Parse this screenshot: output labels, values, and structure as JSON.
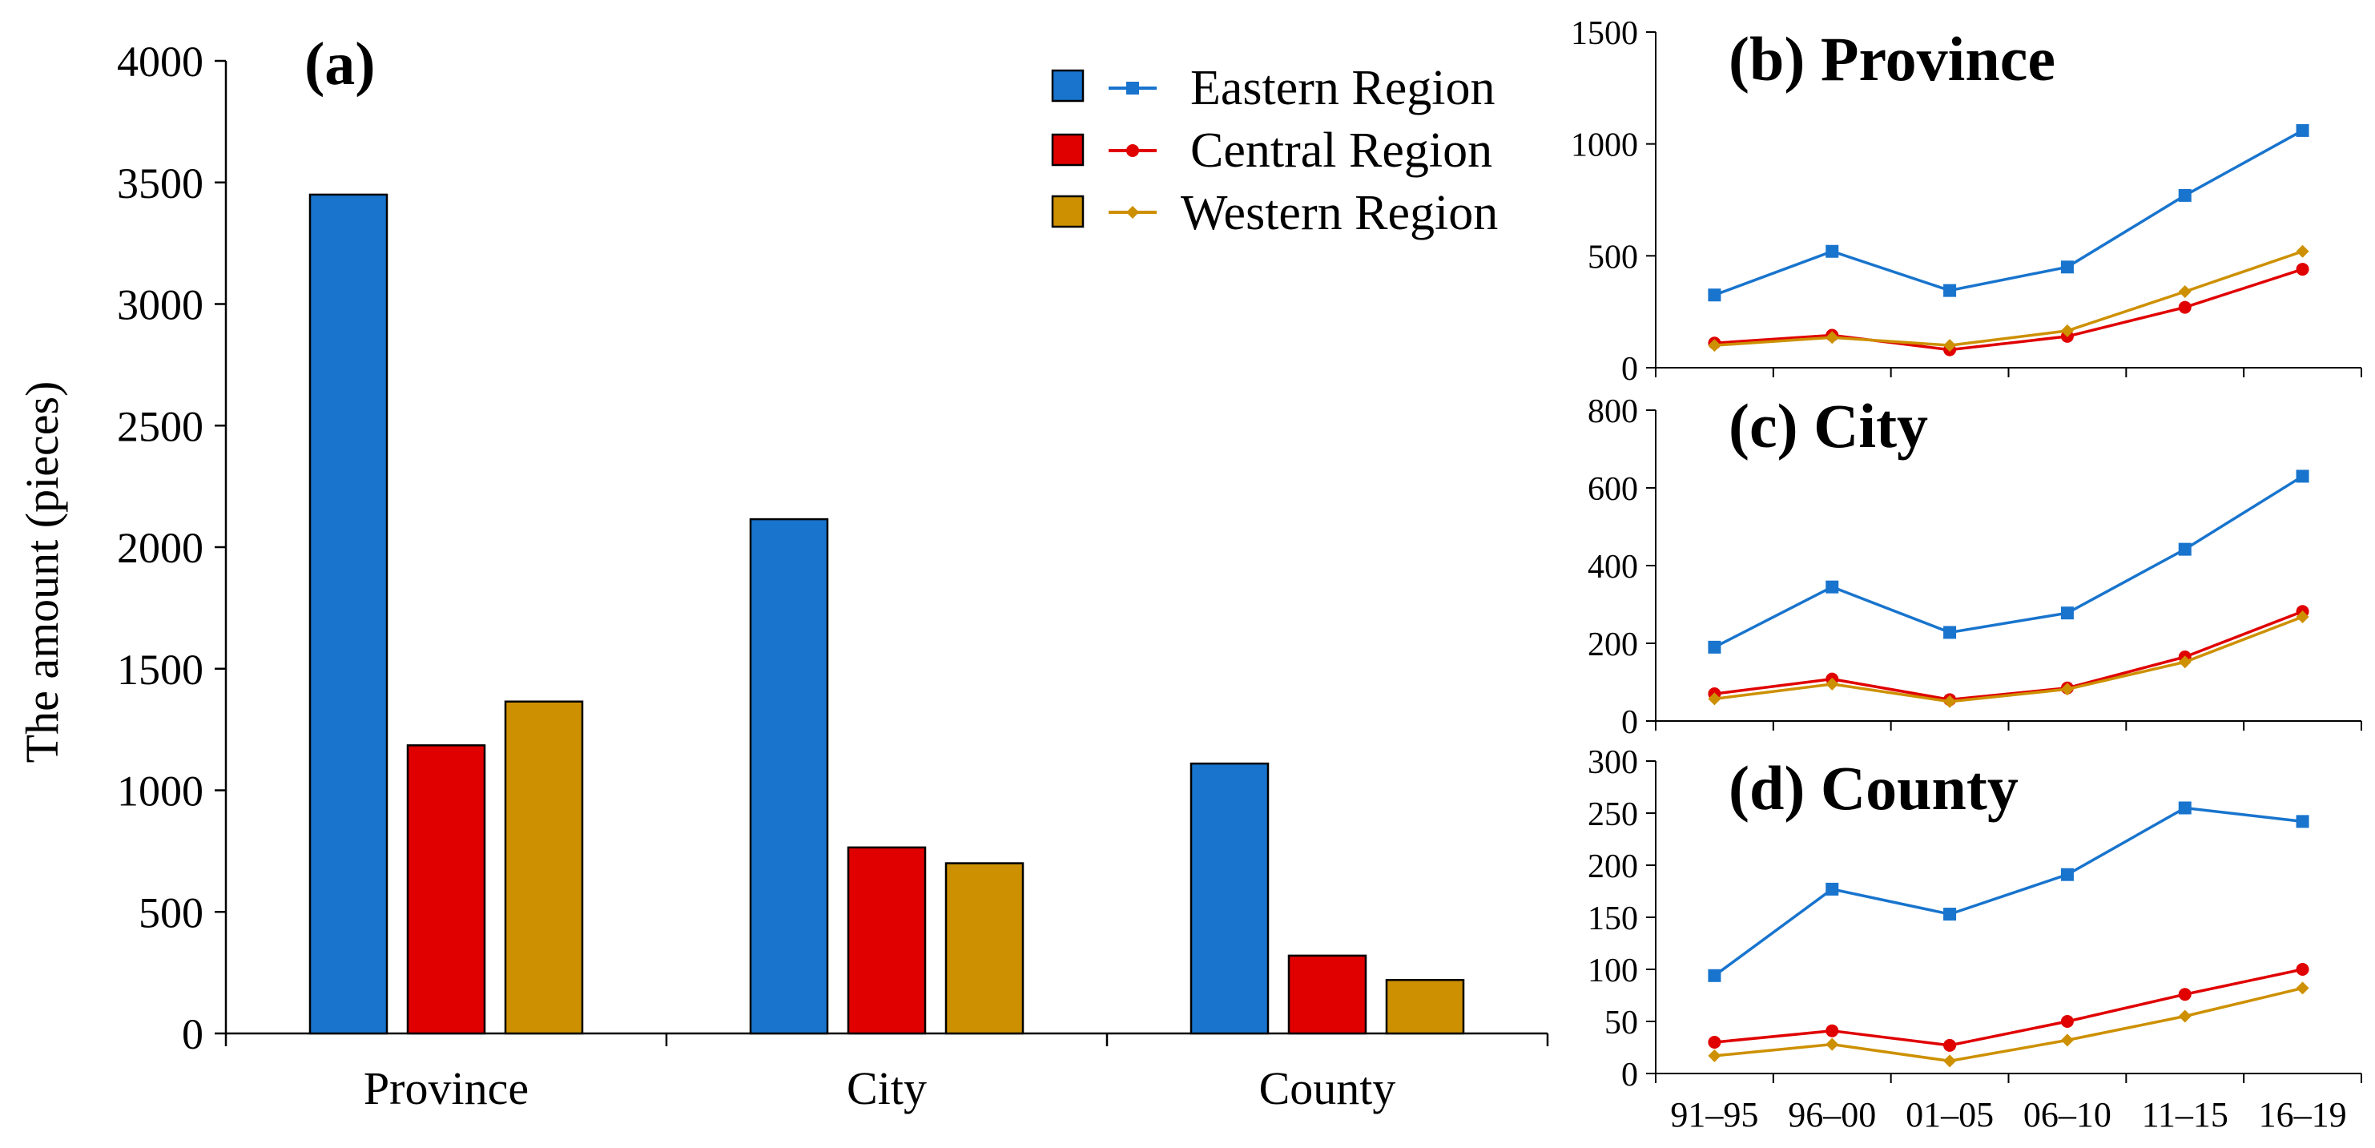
{
  "chart_data": [
    {
      "type": "bar",
      "panel_label": "(a)",
      "ylabel": "The amount (pieces)",
      "xlabel": "",
      "ylim": [
        0,
        4000
      ],
      "yticks": [
        0,
        500,
        1000,
        1500,
        2000,
        2500,
        3000,
        3500,
        4000
      ],
      "categories": [
        "Province",
        "City",
        "County"
      ],
      "series": [
        {
          "name": "Eastern Region",
          "color": "#1874CD",
          "values": [
            3450,
            2115,
            1110
          ]
        },
        {
          "name": "Central Region",
          "color": "#E00000",
          "values": [
            1185,
            765,
            320
          ]
        },
        {
          "name": "Western Region",
          "color": "#CD9000",
          "values": [
            1365,
            700,
            220
          ]
        }
      ],
      "legend": {
        "position": "top-right",
        "entries": [
          "Eastern Region",
          "Central Region",
          "Western Region"
        ]
      },
      "grid": false
    },
    {
      "type": "line",
      "panel_label": "(b) Province",
      "ylim": [
        0,
        1500
      ],
      "yticks": [
        0,
        500,
        1000,
        1500
      ],
      "x": [
        "91–95",
        "96–00",
        "01–05",
        "06–10",
        "11–15",
        "16–19"
      ],
      "series": [
        {
          "name": "Eastern Region",
          "color": "#1874CD",
          "marker": "square",
          "values": [
            325,
            520,
            345,
            450,
            770,
            1060
          ]
        },
        {
          "name": "Central Region",
          "color": "#E00000",
          "marker": "circle",
          "values": [
            110,
            145,
            80,
            140,
            270,
            440
          ]
        },
        {
          "name": "Western Region",
          "color": "#CD9000",
          "marker": "diamond",
          "values": [
            100,
            135,
            100,
            165,
            340,
            520
          ]
        }
      ]
    },
    {
      "type": "line",
      "panel_label": "(c) City",
      "ylim": [
        0,
        800
      ],
      "yticks": [
        0,
        200,
        400,
        600,
        800
      ],
      "x": [
        "91–95",
        "96–00",
        "01–05",
        "06–10",
        "11–15",
        "16–19"
      ],
      "series": [
        {
          "name": "Eastern Region",
          "color": "#1874CD",
          "marker": "square",
          "values": [
            190,
            345,
            228,
            278,
            442,
            630
          ]
        },
        {
          "name": "Central Region",
          "color": "#E00000",
          "marker": "circle",
          "values": [
            70,
            108,
            55,
            85,
            165,
            282
          ]
        },
        {
          "name": "Western Region",
          "color": "#CD9000",
          "marker": "diamond",
          "values": [
            57,
            95,
            50,
            82,
            152,
            268
          ]
        }
      ]
    },
    {
      "type": "line",
      "panel_label": "(d) County",
      "ylim": [
        0,
        300
      ],
      "yticks": [
        0,
        50,
        100,
        150,
        200,
        250,
        300
      ],
      "x": [
        "91–95",
        "96–00",
        "01–05",
        "06–10",
        "11–15",
        "16–19"
      ],
      "series": [
        {
          "name": "Eastern Region",
          "color": "#1874CD",
          "marker": "square",
          "values": [
            94,
            177,
            153,
            191,
            255,
            242
          ]
        },
        {
          "name": "Central Region",
          "color": "#E00000",
          "marker": "circle",
          "values": [
            30,
            41,
            27,
            50,
            76,
            100
          ]
        },
        {
          "name": "Western Region",
          "color": "#CD9000",
          "marker": "diamond",
          "values": [
            17,
            28,
            12,
            32,
            55,
            82
          ]
        }
      ]
    }
  ]
}
